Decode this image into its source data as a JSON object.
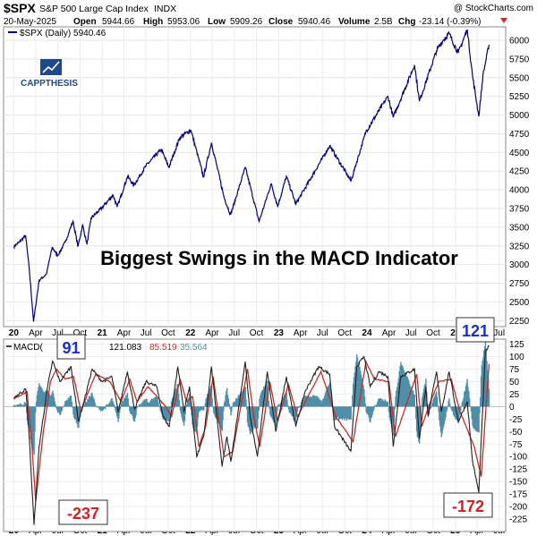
{
  "header": {
    "symbol": "$SPX",
    "name": "S&P 500 Large Cap Index",
    "exchange": "INDX",
    "source": "@ StockCharts.com",
    "date": "20-May-2025",
    "open_label": "Open",
    "open": "5944.66",
    "high_label": "High",
    "high": "5953.06",
    "low_label": "Low",
    "low": "5909.26",
    "close_label": "Close",
    "close": "5940.46",
    "volume_label": "Volume",
    "volume": "2.5B",
    "chg_label": "Chg",
    "chg": "-23.14 (-0.39%)"
  },
  "logo": {
    "text": "CAPPTHESIS"
  },
  "annotations": {
    "title": "Biggest Swings in the MACD Indicator",
    "macd_max": "91",
    "macd_recent_max": "121",
    "macd_min": "-237",
    "macd_recent_min": "-172"
  },
  "colors": {
    "price_line": "#00007a",
    "macd_line": "#222222",
    "signal_line": "#c0302a",
    "histogram": "#4f8ea8",
    "annotation_text": "#1a2fcc",
    "annotation_neg": "#d02020",
    "logo": "#1f4a8a"
  },
  "chart_data": [
    {
      "type": "line",
      "panel": "price",
      "legend": "$SPX (Daily) 5940.46",
      "series": [
        {
          "name": "$SPX",
          "points": [
            [
              "2020-01-01",
              3240
            ],
            [
              "2020-01-24",
              3300
            ],
            [
              "2020-02-19",
              3390
            ],
            [
              "2020-03-05",
              2950
            ],
            [
              "2020-03-23",
              2237
            ],
            [
              "2020-04-15",
              2790
            ],
            [
              "2020-05-15",
              2870
            ],
            [
              "2020-06-08",
              3230
            ],
            [
              "2020-07-01",
              3120
            ],
            [
              "2020-08-01",
              3300
            ],
            [
              "2020-09-02",
              3580
            ],
            [
              "2020-09-23",
              3240
            ],
            [
              "2020-10-12",
              3530
            ],
            [
              "2020-10-30",
              3270
            ],
            [
              "2020-11-16",
              3620
            ],
            [
              "2020-12-31",
              3760
            ],
            [
              "2021-02-15",
              3930
            ],
            [
              "2021-03-04",
              3770
            ],
            [
              "2021-04-16",
              4180
            ],
            [
              "2021-05-12",
              4060
            ],
            [
              "2021-07-01",
              4320
            ],
            [
              "2021-09-02",
              4540
            ],
            [
              "2021-10-04",
              4300
            ],
            [
              "2021-11-18",
              4700
            ],
            [
              "2022-01-03",
              4800
            ],
            [
              "2022-02-24",
              4170
            ],
            [
              "2022-03-29",
              4630
            ],
            [
              "2022-05-20",
              3900
            ],
            [
              "2022-06-16",
              3666
            ],
            [
              "2022-08-16",
              4300
            ],
            [
              "2022-10-12",
              3577
            ],
            [
              "2022-12-01",
              4080
            ],
            [
              "2022-12-28",
              3780
            ],
            [
              "2023-02-02",
              4180
            ],
            [
              "2023-03-13",
              3810
            ],
            [
              "2023-07-31",
              4590
            ],
            [
              "2023-10-27",
              4117
            ],
            [
              "2023-12-28",
              4780
            ],
            [
              "2024-03-28",
              5250
            ],
            [
              "2024-04-19",
              4970
            ],
            [
              "2024-07-16",
              5670
            ],
            [
              "2024-08-05",
              5186
            ],
            [
              "2024-10-15",
              5860
            ],
            [
              "2024-11-11",
              6000
            ],
            [
              "2024-12-06",
              6090
            ],
            [
              "2025-01-13",
              5830
            ],
            [
              "2025-02-19",
              6144
            ],
            [
              "2025-03-13",
              5520
            ],
            [
              "2025-04-08",
              4982
            ],
            [
              "2025-04-25",
              5530
            ],
            [
              "2025-05-20",
              5940
            ]
          ]
        }
      ],
      "y_ticks": [
        2250,
        2500,
        2750,
        3000,
        3250,
        3500,
        3750,
        4000,
        4250,
        4500,
        4750,
        5000,
        5250,
        5500,
        5750,
        6000
      ],
      "ylim": [
        2170,
        6180
      ]
    },
    {
      "type": "line",
      "panel": "macd",
      "legend_label": "MACD(",
      "legend_values": [
        "121.083",
        "85.519",
        "35.564"
      ],
      "series": [
        {
          "name": "MACD",
          "points": [
            [
              "2020-01-01",
              18
            ],
            [
              "2020-02-20",
              35
            ],
            [
              "2020-03-05",
              -60
            ],
            [
              "2020-03-25",
              -237
            ],
            [
              "2020-04-15",
              -80
            ],
            [
              "2020-05-20",
              40
            ],
            [
              "2020-06-10",
              91
            ],
            [
              "2020-07-10",
              50
            ],
            [
              "2020-08-25",
              80
            ],
            [
              "2020-09-25",
              -30
            ],
            [
              "2020-10-20",
              15
            ],
            [
              "2020-11-20",
              75
            ],
            [
              "2021-01-01",
              50
            ],
            [
              "2021-02-10",
              60
            ],
            [
              "2021-03-08",
              -10
            ],
            [
              "2021-04-15",
              70
            ],
            [
              "2021-05-15",
              -5
            ],
            [
              "2021-07-01",
              50
            ],
            [
              "2021-08-15",
              40
            ],
            [
              "2021-09-10",
              -20
            ],
            [
              "2021-10-05",
              -40
            ],
            [
              "2021-11-10",
              80
            ],
            [
              "2021-12-05",
              -10
            ],
            [
              "2021-12-28",
              40
            ],
            [
              "2022-01-27",
              -100
            ],
            [
              "2022-02-25",
              -60
            ],
            [
              "2022-03-29",
              80
            ],
            [
              "2022-05-12",
              -120
            ],
            [
              "2022-06-01",
              -60
            ],
            [
              "2022-06-17",
              -110
            ],
            [
              "2022-08-16",
              90
            ],
            [
              "2022-09-05",
              -20
            ],
            [
              "2022-10-05",
              -100
            ],
            [
              "2022-11-15",
              70
            ],
            [
              "2022-12-20",
              -50
            ],
            [
              "2023-02-02",
              60
            ],
            [
              "2023-03-13",
              -40
            ],
            [
              "2023-04-20",
              30
            ],
            [
              "2023-06-15",
              80
            ],
            [
              "2023-07-31",
              65
            ],
            [
              "2023-08-20",
              -40
            ],
            [
              "2023-10-27",
              -90
            ],
            [
              "2023-11-20",
              80
            ],
            [
              "2023-12-20",
              100
            ],
            [
              "2024-01-15",
              40
            ],
            [
              "2024-02-20",
              70
            ],
            [
              "2024-03-28",
              60
            ],
            [
              "2024-04-19",
              -80
            ],
            [
              "2024-05-20",
              60
            ],
            [
              "2024-07-16",
              75
            ],
            [
              "2024-08-05",
              -65
            ],
            [
              "2024-09-01",
              40
            ],
            [
              "2024-09-10",
              -20
            ],
            [
              "2024-10-15",
              70
            ],
            [
              "2024-11-04",
              -10
            ],
            [
              "2024-12-06",
              70
            ],
            [
              "2025-01-13",
              -30
            ],
            [
              "2025-02-19",
              10
            ],
            [
              "2025-03-13",
              -110
            ],
            [
              "2025-04-08",
              -172
            ],
            [
              "2025-05-05",
              110
            ],
            [
              "2025-05-20",
              121
            ]
          ]
        },
        {
          "name": "Signal",
          "points": [
            [
              "2020-01-01",
              15
            ],
            [
              "2020-02-25",
              30
            ],
            [
              "2020-03-15",
              -70
            ],
            [
              "2020-04-01",
              -190
            ],
            [
              "2020-04-30",
              -60
            ],
            [
              "2020-06-01",
              50
            ],
            [
              "2020-06-25",
              75
            ],
            [
              "2020-08-01",
              55
            ],
            [
              "2020-09-05",
              60
            ],
            [
              "2020-10-05",
              -10
            ],
            [
              "2020-11-05",
              30
            ],
            [
              "2020-12-05",
              65
            ],
            [
              "2021-02-01",
              50
            ],
            [
              "2021-03-20",
              10
            ],
            [
              "2021-04-25",
              55
            ],
            [
              "2021-05-25",
              10
            ],
            [
              "2021-07-10",
              40
            ],
            [
              "2021-09-20",
              0
            ],
            [
              "2021-10-15",
              -20
            ],
            [
              "2021-11-20",
              55
            ],
            [
              "2021-12-15",
              10
            ],
            [
              "2022-01-10",
              20
            ],
            [
              "2022-02-05",
              -80
            ],
            [
              "2022-03-05",
              -40
            ],
            [
              "2022-04-05",
              60
            ],
            [
              "2022-05-20",
              -100
            ],
            [
              "2022-06-25",
              -90
            ],
            [
              "2022-08-25",
              75
            ],
            [
              "2022-09-20",
              -20
            ],
            [
              "2022-10-15",
              -80
            ],
            [
              "2022-11-25",
              50
            ],
            [
              "2022-12-28",
              -30
            ],
            [
              "2023-02-10",
              45
            ],
            [
              "2023-03-20",
              -20
            ],
            [
              "2023-06-25",
              70
            ],
            [
              "2023-08-25",
              -20
            ],
            [
              "2023-11-05",
              -70
            ],
            [
              "2023-12-28",
              90
            ],
            [
              "2024-02-01",
              55
            ],
            [
              "2024-04-01",
              50
            ],
            [
              "2024-04-28",
              -60
            ],
            [
              "2024-07-25",
              65
            ],
            [
              "2024-08-15",
              -40
            ],
            [
              "2024-09-20",
              10
            ],
            [
              "2024-10-25",
              50
            ],
            [
              "2024-12-15",
              55
            ],
            [
              "2025-01-20",
              -10
            ],
            [
              "2025-03-20",
              -80
            ],
            [
              "2025-04-18",
              -140
            ],
            [
              "2025-05-20",
              85.5
            ]
          ]
        }
      ],
      "y_ticks": [
        -225,
        -200,
        -175,
        -150,
        -125,
        -100,
        -75,
        -50,
        -25,
        0,
        25,
        50,
        75,
        100,
        125
      ],
      "ylim": [
        -250,
        135
      ]
    }
  ],
  "x_ticks": [
    {
      "date": "2020-01-01",
      "label": "20",
      "bold": true
    },
    {
      "date": "2020-04-01",
      "label": "Apr"
    },
    {
      "date": "2020-07-01",
      "label": "Jul"
    },
    {
      "date": "2020-10-01",
      "label": "Oct"
    },
    {
      "date": "2021-01-01",
      "label": "21",
      "bold": true
    },
    {
      "date": "2021-04-01",
      "label": "Apr"
    },
    {
      "date": "2021-07-01",
      "label": "Jul"
    },
    {
      "date": "2021-10-01",
      "label": "Oct"
    },
    {
      "date": "2022-01-01",
      "label": "22",
      "bold": true
    },
    {
      "date": "2022-04-01",
      "label": "Apr"
    },
    {
      "date": "2022-07-01",
      "label": "Jul"
    },
    {
      "date": "2022-10-01",
      "label": "Oct"
    },
    {
      "date": "2023-01-01",
      "label": "23",
      "bold": true
    },
    {
      "date": "2023-04-01",
      "label": "Apr"
    },
    {
      "date": "2023-07-01",
      "label": "Jul"
    },
    {
      "date": "2023-10-01",
      "label": "Oct"
    },
    {
      "date": "2024-01-01",
      "label": "24",
      "bold": true
    },
    {
      "date": "2024-04-01",
      "label": "Apr"
    },
    {
      "date": "2024-07-01",
      "label": "Jul"
    },
    {
      "date": "2024-10-01",
      "label": "Oct"
    },
    {
      "date": "2025-01-01",
      "label": "25",
      "bold": true
    },
    {
      "date": "2025-04-01",
      "label": "Apr"
    },
    {
      "date": "2025-07-01",
      "label": "Jul"
    }
  ],
  "xlim": [
    "2019-11-20",
    "2025-07-28"
  ]
}
